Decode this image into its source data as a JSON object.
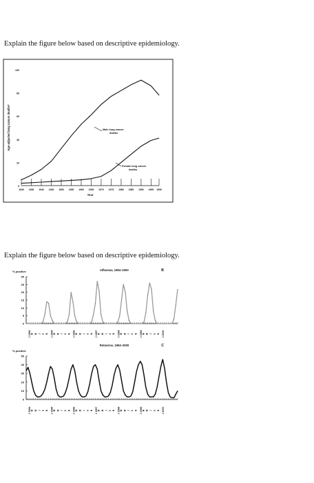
{
  "questions": {
    "q1": "Explain the figure below based on descriptive epidemiology.",
    "q2": "Explain the figure below based on descriptive epidemiology."
  },
  "colors": {
    "ink": "#111111",
    "grey_line": "#9a9a9a",
    "frame": "#222222"
  },
  "chart_data": [
    {
      "type": "line",
      "title": "",
      "xlabel": "Year",
      "ylabel": "Age-adjusted lung cancer deaths*",
      "xlim": [
        1930,
        1999
      ],
      "ylim": [
        0,
        100
      ],
      "y_ticks": [
        "0",
        "20",
        "40",
        "60",
        "80",
        "100"
      ],
      "x_ticks": [
        "1930",
        "1935",
        "1940",
        "1945",
        "1950",
        "1955",
        "1960",
        "1965",
        "1970",
        "1975",
        "1980",
        "1985",
        "1990",
        "1995",
        "1999"
      ],
      "series": [
        {
          "name": "Male lung cancer deaths",
          "x": [
            1930,
            1935,
            1940,
            1945,
            1950,
            1955,
            1960,
            1965,
            1970,
            1975,
            1980,
            1985,
            1990,
            1995,
            1999
          ],
          "values": [
            5,
            9,
            14,
            21,
            32,
            43,
            53,
            61,
            70,
            77,
            82,
            87,
            91,
            86,
            78
          ]
        },
        {
          "name": "Female lung cancer deaths",
          "x": [
            1930,
            1935,
            1940,
            1945,
            1950,
            1955,
            1960,
            1965,
            1970,
            1975,
            1980,
            1985,
            1990,
            1995,
            1999
          ],
          "values": [
            2,
            2.5,
            3,
            3.5,
            4,
            4.5,
            5,
            6,
            8,
            13,
            20,
            27,
            34,
            39,
            41
          ]
        }
      ],
      "annotations": [
        "Male lung cancer deaths",
        "Female lung cancer deaths"
      ]
    },
    {
      "type": "line",
      "title": "Influenza, 1994–2000",
      "panel_label": "B",
      "ylabel": "% positive",
      "ylim": [
        0,
        30
      ],
      "y_ticks": [
        "0",
        "5",
        "10",
        "15",
        "20",
        "25",
        "30"
      ],
      "x_year_labels": [
        "J 1994",
        "J 1995",
        "J 1996",
        "J 1997",
        "J 1998",
        "J 1999",
        "J 2000"
      ],
      "month_letters": [
        "M",
        "M",
        "J",
        "S",
        "N"
      ],
      "values": [
        0,
        0,
        0,
        0,
        0,
        0,
        0,
        0,
        0,
        1,
        6,
        14,
        13,
        5,
        2,
        0,
        0,
        0,
        0,
        0,
        0,
        0,
        1,
        6,
        20,
        14,
        5,
        1,
        0,
        0,
        0,
        0,
        0,
        0,
        0,
        1,
        6,
        13,
        27,
        21,
        6,
        1,
        0,
        0,
        0,
        0,
        0,
        0,
        0,
        1,
        5,
        15,
        25,
        20,
        8,
        2,
        0,
        0,
        0,
        0,
        0,
        0,
        0,
        1,
        7,
        18,
        26,
        22,
        8,
        2,
        0,
        0,
        0,
        0,
        0,
        0,
        0,
        0,
        0,
        3,
        12,
        22
      ]
    },
    {
      "type": "line",
      "title": "Rotavirus, 1994–2000",
      "panel_label": "C",
      "ylabel": "% positive",
      "ylim": [
        0,
        50
      ],
      "y_ticks": [
        "0",
        "10",
        "20",
        "30",
        "40",
        "50"
      ],
      "x_year_labels": [
        "J 1994",
        "J 1995",
        "J 1996",
        "J 1997",
        "J 1998",
        "J 1999",
        "J 2000"
      ],
      "month_letters": [
        "M",
        "M",
        "J",
        "S",
        "N"
      ],
      "values": [
        33,
        37,
        30,
        20,
        10,
        5,
        3,
        3,
        4,
        7,
        12,
        20,
        30,
        38,
        35,
        25,
        12,
        5,
        3,
        3,
        4,
        8,
        15,
        25,
        35,
        40,
        33,
        20,
        10,
        5,
        3,
        3,
        4,
        9,
        18,
        30,
        38,
        40,
        35,
        22,
        10,
        5,
        3,
        3,
        4,
        8,
        16,
        28,
        36,
        40,
        34,
        22,
        10,
        5,
        3,
        3,
        4,
        9,
        20,
        32,
        40,
        44,
        40,
        28,
        14,
        6,
        3,
        3,
        3,
        6,
        14,
        26,
        38,
        46,
        36,
        20,
        8,
        3,
        2,
        2,
        6,
        10
      ]
    }
  ]
}
